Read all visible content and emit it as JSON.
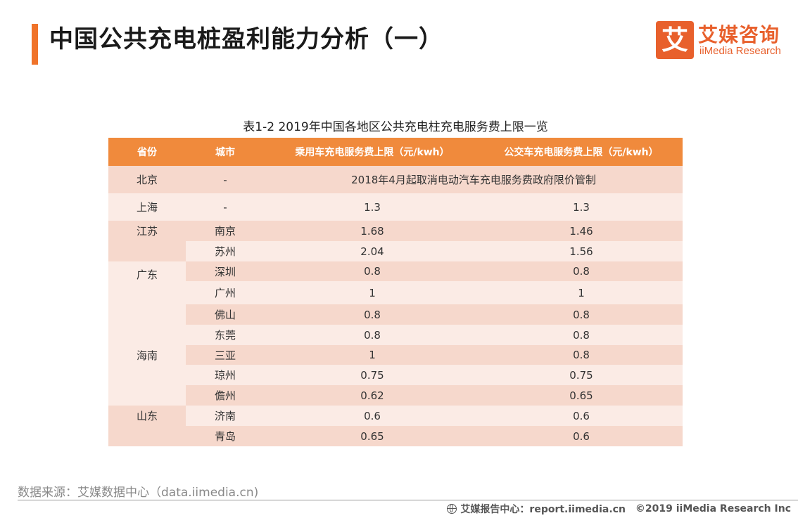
{
  "header": {
    "title": "中国公共充电桩盈利能力分析（一）",
    "logo_mark": "艾",
    "logo_cn": "艾媒咨询",
    "logo_en": "iiMedia Research"
  },
  "colors": {
    "accent": "#f0732a",
    "header_bg": "#f08a3c",
    "row_dark": "#f6d8cc",
    "row_light": "#fbebe5",
    "white": "#ffffff"
  },
  "table": {
    "caption": "表1-2 2019年中国各地区公共充电柱充电服务费上限一览",
    "columns": [
      "省份",
      "城市",
      "乘用车充电服务费上限（元/kwh）",
      "公交车充电服务费上限（元/kwh）"
    ],
    "rows": [
      {
        "province": "北京",
        "city": "-",
        "merged": "2018年4月起取消电动汽车充电服务费政府限价管制"
      },
      {
        "province": "上海",
        "city": "-",
        "car": "1.3",
        "bus": "1.3"
      },
      {
        "province": "江苏",
        "city": "南京",
        "car": "1.68",
        "bus": "1.46"
      },
      {
        "province": "",
        "city": "苏州",
        "car": "2.04",
        "bus": "1.56"
      },
      {
        "province": "广东",
        "city": "深圳",
        "car": "0.8",
        "bus": "0.8"
      },
      {
        "province": "",
        "city": "广州",
        "car": "1",
        "bus": "1"
      },
      {
        "province": "",
        "city": "佛山",
        "car": "0.8",
        "bus": "0.8"
      },
      {
        "province": "",
        "city": "东莞",
        "car": "0.8",
        "bus": "0.8"
      },
      {
        "province": "海南",
        "city": "三亚",
        "car": "1",
        "bus": "0.8"
      },
      {
        "province": "",
        "city": "琼州",
        "car": "0.75",
        "bus": "0.75"
      },
      {
        "province": "",
        "city": "儋州",
        "car": "0.62",
        "bus": "0.65"
      },
      {
        "province": "山东",
        "city": "济南",
        "car": "0.6",
        "bus": "0.6"
      },
      {
        "province": "",
        "city": "青岛",
        "car": "0.65",
        "bus": "0.6"
      }
    ]
  },
  "footer": {
    "source": "数据来源：艾媒数据中心（data.iimedia.cn)",
    "credit_site": "艾媒报告中心：report.iimedia.cn",
    "credit_copyright": "©2019  iiMedia Research  Inc"
  }
}
